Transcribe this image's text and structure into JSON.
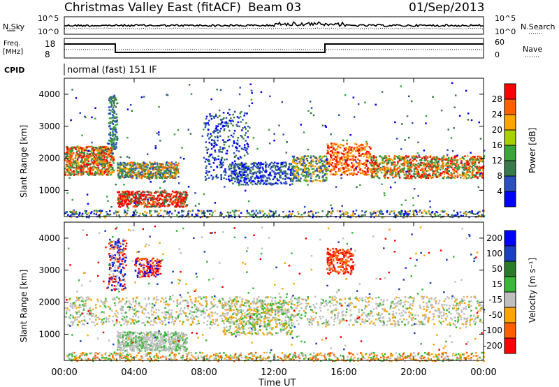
{
  "header": {
    "station": "Christmas Valley East (fitACF)",
    "beam_label": "Beam 03",
    "date": "01/Sep/2013"
  },
  "panels": {
    "nsky": {
      "label": "N.Sky",
      "right_label": "N.Search",
      "left_ticks": [
        "10^5",
        "10^0"
      ],
      "right_ticks": [
        "10^5",
        "10^0"
      ]
    },
    "freq": {
      "label_line1": "Freq.",
      "label_line2": "[MHz]",
      "left_ticks": [
        "18",
        "8"
      ],
      "right_ticks": [
        "60",
        "0"
      ],
      "right_label": "Nave"
    },
    "cpid": {
      "label": "CPID",
      "mode": "normal (fast) 151 IF"
    }
  },
  "colors": {
    "power_scale": [
      "#0000ff",
      "#2a4fc0",
      "#3a7a4a",
      "#3aa63a",
      "#a8d000",
      "#ffa500",
      "#ff6000",
      "#ff0000"
    ],
    "velocity_scale": [
      "#0000ff",
      "#1a3fc0",
      "#2a7a2a",
      "#3ab83a",
      "#bfbfbf",
      "#ffa500",
      "#ff6000",
      "#ff0000"
    ],
    "background_scatter": "#bfbfbf"
  },
  "chart_data": [
    {
      "type": "heatmap",
      "name": "power",
      "ylabel": "Slant Range [km]",
      "ylim": [
        180,
        4500
      ],
      "yticks": [
        "1000",
        "2000",
        "3000",
        "4000"
      ],
      "colorbar_label": "Power [dB]",
      "colorbar_ticks": [
        "4",
        "8",
        "12",
        "16",
        "20",
        "24",
        "28"
      ],
      "colorbar_range": [
        0,
        30
      ],
      "grid": false
    },
    {
      "type": "heatmap",
      "name": "velocity",
      "ylabel": "Slant Range [km]",
      "ylim": [
        180,
        4500
      ],
      "yticks": [
        "1000",
        "2000",
        "3000",
        "4000"
      ],
      "colorbar_label": "Velocity [m s⁻¹]",
      "colorbar_ticks": [
        "200",
        "100",
        "50",
        "15",
        "-15",
        "-50",
        "-100",
        "-200"
      ],
      "colorbar_range": [
        -250,
        250
      ],
      "grid": false
    }
  ],
  "time_axis": {
    "label": "Time UT",
    "range_hours": [
      0,
      24
    ],
    "ticks": [
      "00:00",
      "04:00",
      "08:00",
      "12:00",
      "16:00",
      "20:00",
      "00:00"
    ]
  }
}
